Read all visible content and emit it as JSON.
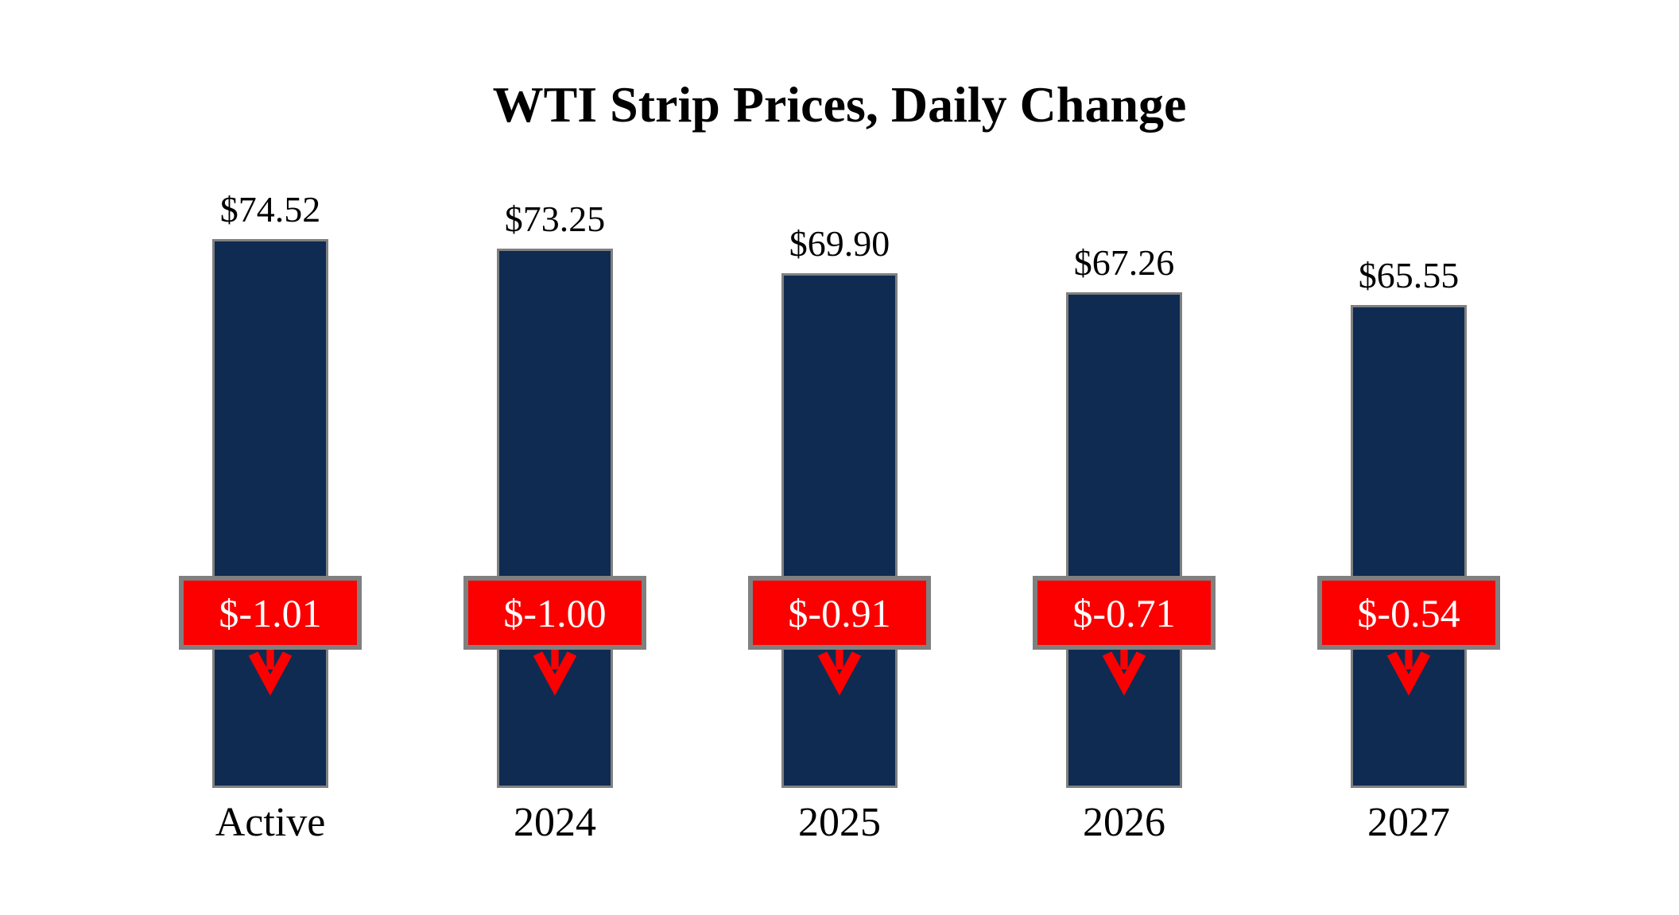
{
  "title": "WTI Strip Prices, Daily Change",
  "chart_data": {
    "type": "bar",
    "title": "WTI Strip Prices, Daily Change",
    "categories": [
      "Active",
      "2024",
      "2025",
      "2026",
      "2027"
    ],
    "series": [
      {
        "name": "WTI Strip Price",
        "values": [
          74.52,
          73.25,
          69.9,
          67.26,
          65.55
        ]
      },
      {
        "name": "Daily Change",
        "values": [
          -1.01,
          -1.0,
          -0.91,
          -0.71,
          -0.54
        ]
      }
    ],
    "bars": [
      {
        "category": "Active",
        "price": 74.52,
        "price_label": "$74.52",
        "change": -1.01,
        "change_label": "$-1.01",
        "direction": "down"
      },
      {
        "category": "2024",
        "price": 73.25,
        "price_label": "$73.25",
        "change": -1.0,
        "change_label": "$-1.00",
        "direction": "down"
      },
      {
        "category": "2025",
        "price": 69.9,
        "price_label": "$69.90",
        "change": -0.91,
        "change_label": "$-0.91",
        "direction": "down"
      },
      {
        "category": "2026",
        "price": 67.26,
        "price_label": "$67.26",
        "change": -0.71,
        "change_label": "$-0.71",
        "direction": "down"
      },
      {
        "category": "2027",
        "price": 65.55,
        "price_label": "$65.55",
        "change": -0.54,
        "change_label": "$-0.54",
        "direction": "down"
      }
    ],
    "ylim": [
      0,
      85
    ],
    "axes_visible": false,
    "gridlines": false,
    "legend": "none",
    "icons": {
      "direction_icon": "down-arrow-icon"
    },
    "colors": {
      "bar_fill": "#0F2B52",
      "bar_border": "#808080",
      "change_box_fill": "#FC0000",
      "change_box_border": "#808080",
      "change_box_text": "#FFFFFF",
      "arrow": "#FC0000",
      "label_text": "#000000"
    }
  }
}
